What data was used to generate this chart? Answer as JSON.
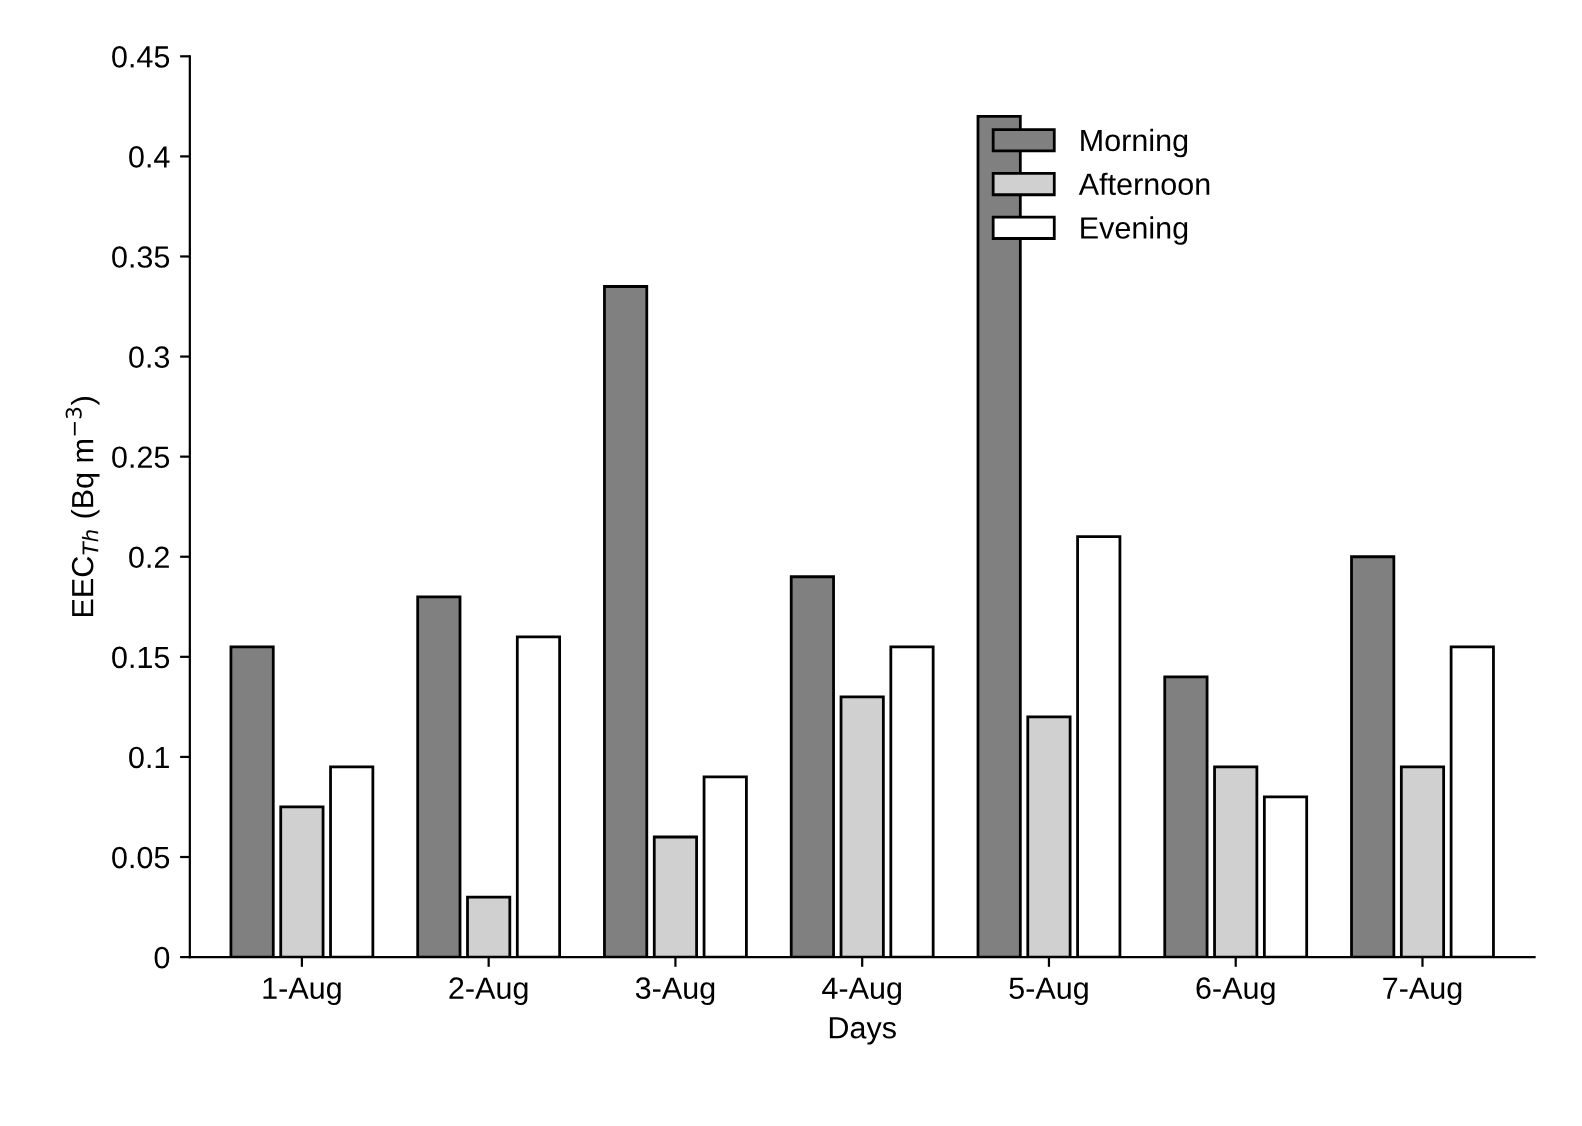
{
  "chart_data": {
    "type": "bar",
    "xlabel": "Days",
    "ylabel": "EEC$_{Th}$ (Bq m$^{−3}$)",
    "categories": [
      "1-Aug",
      "2-Aug",
      "3-Aug",
      "4-Aug",
      "5-Aug",
      "6-Aug",
      "7-Aug"
    ],
    "series": [
      {
        "name": "Morning",
        "color": "#808080",
        "values": [
          0.155,
          0.18,
          0.335,
          0.19,
          0.42,
          0.14,
          0.2
        ]
      },
      {
        "name": "Afternoon",
        "color": "#d0d0d0",
        "values": [
          0.075,
          0.03,
          0.06,
          0.13,
          0.12,
          0.095,
          0.095
        ]
      },
      {
        "name": "Evening",
        "color": "#ffffff",
        "values": [
          0.095,
          0.16,
          0.09,
          0.155,
          0.21,
          0.08,
          0.155
        ]
      }
    ],
    "ylim": [
      0,
      0.45
    ],
    "yticks": [
      0,
      0.05,
      0.1,
      0.15,
      0.2,
      0.25,
      0.3,
      0.35,
      0.4,
      0.45
    ],
    "grid": false,
    "legend": "top right"
  }
}
